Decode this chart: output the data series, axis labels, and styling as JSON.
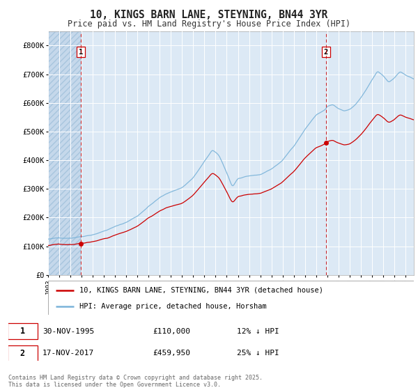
{
  "title": "10, KINGS BARN LANE, STEYNING, BN44 3YR",
  "subtitle": "Price paid vs. HM Land Registry's House Price Index (HPI)",
  "ylim": [
    0,
    850000
  ],
  "xlim_start": 1993.0,
  "xlim_end": 2025.75,
  "hpi_color": "#7ab3d9",
  "price_color": "#cc0000",
  "sale1_year": 1995.92,
  "sale1_price": 110000,
  "sale2_year": 2017.88,
  "sale2_price": 459950,
  "legend_line1": "10, KINGS BARN LANE, STEYNING, BN44 3YR (detached house)",
  "legend_line2": "HPI: Average price, detached house, Horsham",
  "footnote": "Contains HM Land Registry data © Crown copyright and database right 2025.\nThis data is licensed under the Open Government Licence v3.0.",
  "bg_color": "#dce9f5",
  "hatch_area_color": "#c5d8eb",
  "grid_color": "#ffffff",
  "ytick_labels": [
    "£0",
    "£100K",
    "£200K",
    "£300K",
    "£400K",
    "£500K",
    "£600K",
    "£700K",
    "£800K"
  ],
  "ytick_values": [
    0,
    100000,
    200000,
    300000,
    400000,
    500000,
    600000,
    700000,
    800000
  ]
}
